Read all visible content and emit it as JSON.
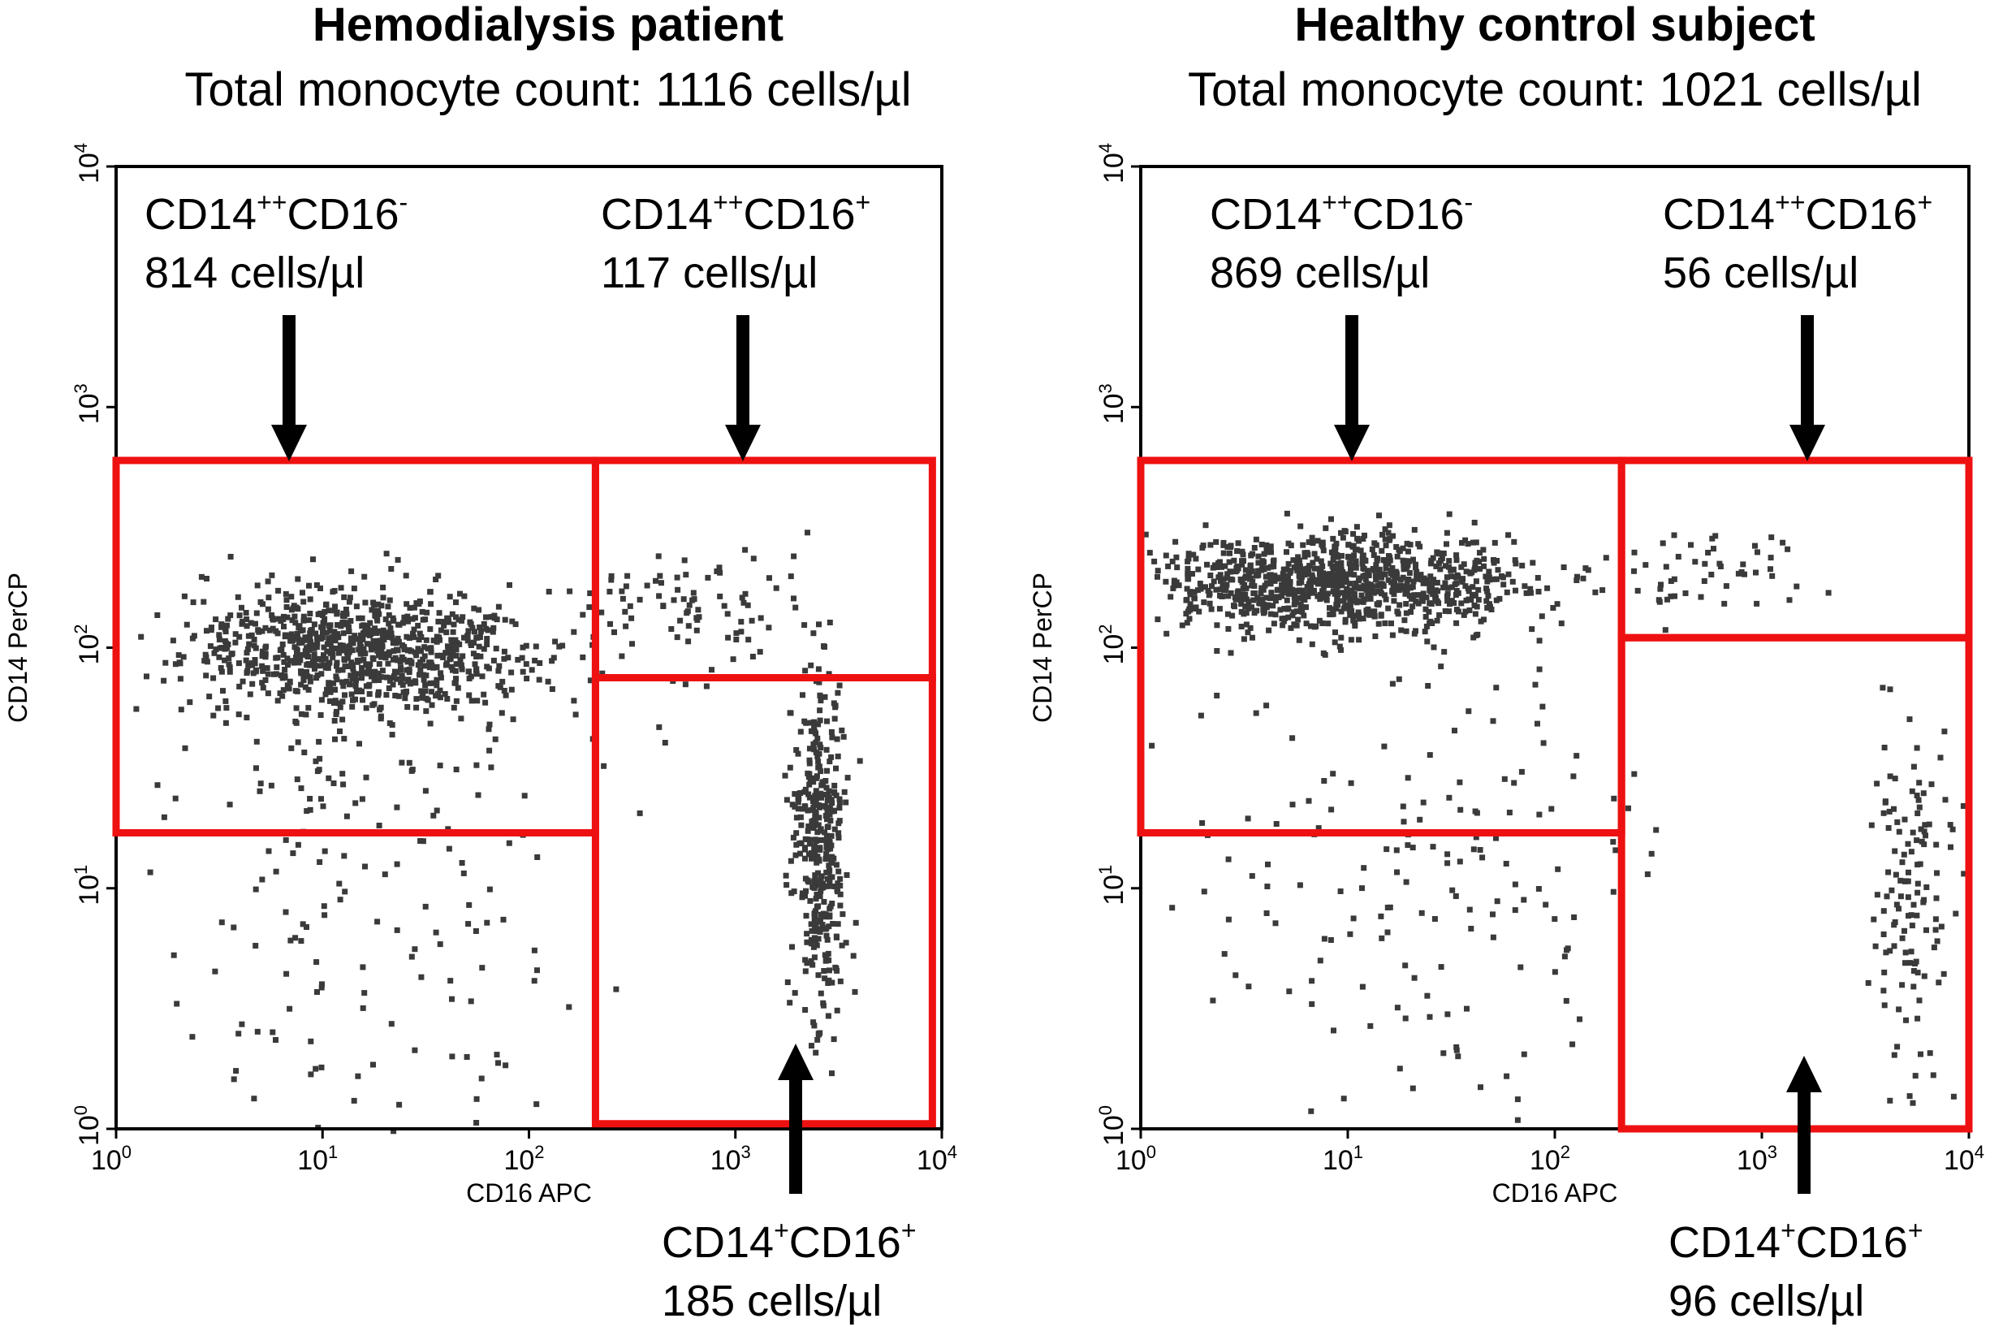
{
  "chart_data": [
    {
      "type": "scatter",
      "title": "Hemodialysis patient",
      "subtitle": "Total monocyte count: 1116 cells/µl",
      "xlabel": "CD16 APC",
      "ylabel": "CD14 PerCP",
      "xscale": "log",
      "yscale": "log",
      "xlim": [
        1,
        10000
      ],
      "ylim": [
        1,
        10000
      ],
      "xticks": [
        "10^0",
        "10^1",
        "10^2",
        "10^3",
        "10^4"
      ],
      "yticks": [
        "10^0",
        "10^1",
        "10^2",
        "10^3",
        "10^4"
      ],
      "gates": [
        {
          "population": "CD14++CD16-",
          "base": "CD14",
          "sup1": "++",
          "mid": "CD16",
          "sup2": "-",
          "count_text": "814 cells/µl",
          "cells_per_ul": 814,
          "x_range": [
            1,
            210
          ],
          "y_range": [
            17,
            600
          ]
        },
        {
          "population": "CD14++CD16+",
          "base": "CD14",
          "sup1": "++",
          "mid": "CD16",
          "sup2": "+",
          "count_text": "117 cells/µl",
          "cells_per_ul": 117,
          "x_range": [
            210,
            9000
          ],
          "y_range": [
            75,
            600
          ]
        },
        {
          "population": "CD14+CD16+",
          "base": "CD14",
          "sup1": "+",
          "mid": "CD16",
          "sup2": "+",
          "count_text": "185 cells/µl",
          "cells_per_ul": 185,
          "x_range": [
            210,
            9000
          ],
          "y_range": [
            1.05,
            75
          ]
        }
      ],
      "clusters": [
        {
          "cx": 15,
          "cy": 100,
          "sx": 0.42,
          "sy": 0.13,
          "n": 900
        },
        {
          "cx": 600,
          "cy": 150,
          "sx": 0.25,
          "sy": 0.14,
          "n": 90
        },
        {
          "cx": 2500,
          "cy": 15,
          "sx": 0.07,
          "sy": 0.35,
          "n": 380
        },
        {
          "cx": 12,
          "cy": 22,
          "sx": 0.55,
          "sy": 0.35,
          "n": 110
        },
        {
          "cx": 15,
          "cy": 3,
          "sx": 0.5,
          "sy": 0.4,
          "n": 70
        }
      ]
    },
    {
      "type": "scatter",
      "title": "Healthy control subject",
      "subtitle": "Total monocyte count: 1021 cells/µl",
      "xlabel": "CD16 APC",
      "ylabel": "CD14 PerCP",
      "xscale": "log",
      "yscale": "log",
      "xlim": [
        1,
        10000
      ],
      "ylim": [
        1,
        10000
      ],
      "xticks": [
        "10^0",
        "10^1",
        "10^2",
        "10^3",
        "10^4"
      ],
      "yticks": [
        "10^0",
        "10^1",
        "10^2",
        "10^3",
        "10^4"
      ],
      "gates": [
        {
          "population": "CD14++CD16-",
          "base": "CD14",
          "sup1": "++",
          "mid": "CD16",
          "sup2": "-",
          "count_text": "869 cells/µl",
          "cells_per_ul": 869,
          "x_range": [
            1,
            210
          ],
          "y_range": [
            17,
            600
          ]
        },
        {
          "population": "CD14++CD16+",
          "base": "CD14",
          "sup1": "++",
          "mid": "CD16",
          "sup2": "+",
          "count_text": "56 cells/µl",
          "cells_per_ul": 56,
          "x_range": [
            210,
            10000
          ],
          "y_range": [
            110,
            600
          ]
        },
        {
          "population": "CD14+CD16+",
          "base": "CD14",
          "sup1": "+",
          "mid": "CD16",
          "sup2": "+",
          "count_text": "96 cells/µl",
          "cells_per_ul": 96,
          "x_range": [
            210,
            10000
          ],
          "y_range": [
            1,
            110
          ]
        }
      ],
      "clusters": [
        {
          "cx": 8,
          "cy": 190,
          "sx": 0.45,
          "sy": 0.1,
          "n": 1000
        },
        {
          "cx": 600,
          "cy": 200,
          "sx": 0.25,
          "sy": 0.12,
          "n": 50
        },
        {
          "cx": 5000,
          "cy": 8,
          "sx": 0.12,
          "sy": 0.45,
          "n": 130
        },
        {
          "cx": 20,
          "cy": 20,
          "sx": 0.6,
          "sy": 0.4,
          "n": 110
        },
        {
          "cx": 20,
          "cy": 3,
          "sx": 0.6,
          "sy": 0.35,
          "n": 60
        }
      ]
    }
  ]
}
